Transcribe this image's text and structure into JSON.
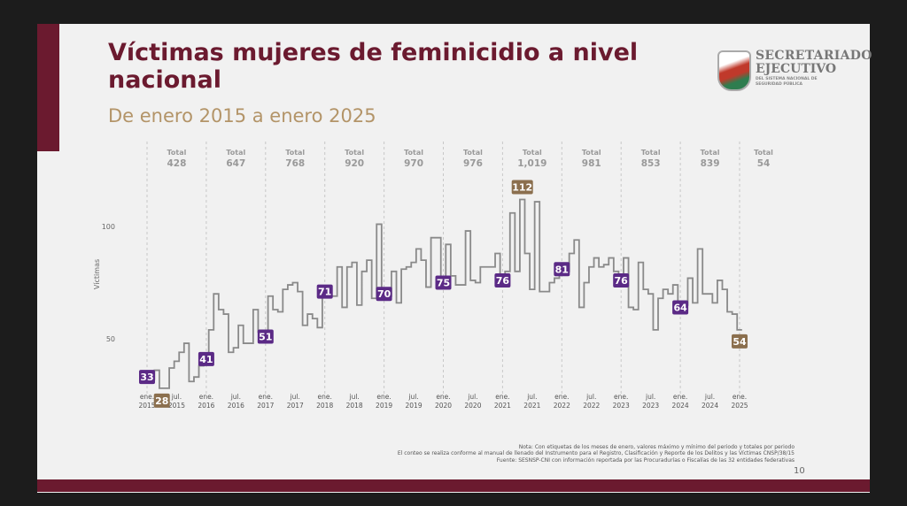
{
  "slide": {
    "title": "Víctimas mujeres de feminicidio a nivel nacional",
    "subtitle": "De enero 2015 a enero 2025",
    "logo": {
      "line1": "SECRETARIADO",
      "line2": "EJECUTIVO",
      "line3": "DEL SISTEMA NACIONAL DE SEGURIDAD PÚBLICA"
    },
    "notes": [
      "Nota: Con etiquetas de los meses de enero, valores máximo y mínimo del periodo y totales por periodo",
      "El conteo se realiza conforme al manual de llenado del Instrumento para el Registro, Clasificación y Reporte de los Delitos y las Víctimas CNSP/38/15",
      "Fuente: SESNSP-CNI con información reportada por las Procuradurías o Fiscalías de las 32 entidades federativas"
    ],
    "page_number": "10",
    "colors": {
      "brand": "#6b1a2f",
      "subtitle": "#b39468",
      "jan_label": "#5b2a86",
      "extreme_label": "#8b6f4e",
      "line": "#8a8a8a"
    }
  },
  "chart_data": {
    "type": "line",
    "style": "step",
    "ylabel": "Víctimas",
    "yticks": [
      50,
      100
    ],
    "ylim": [
      0,
      125
    ],
    "grid": "vertical dashed lines at each January",
    "start": "2015-01",
    "end": "2025-01",
    "xticks": [
      [
        "ene.",
        "2015"
      ],
      [
        "jul.",
        "2015"
      ],
      [
        "ene.",
        "2016"
      ],
      [
        "jul.",
        "2016"
      ],
      [
        "ene.",
        "2017"
      ],
      [
        "jul.",
        "2017"
      ],
      [
        "ene.",
        "2018"
      ],
      [
        "jul.",
        "2018"
      ],
      [
        "ene.",
        "2019"
      ],
      [
        "jul.",
        "2019"
      ],
      [
        "ene.",
        "2020"
      ],
      [
        "jul.",
        "2020"
      ],
      [
        "ene.",
        "2021"
      ],
      [
        "jul.",
        "2021"
      ],
      [
        "ene.",
        "2022"
      ],
      [
        "jul.",
        "2022"
      ],
      [
        "ene.",
        "2023"
      ],
      [
        "jul.",
        "2023"
      ],
      [
        "ene.",
        "2024"
      ],
      [
        "jul.",
        "2024"
      ],
      [
        "ene.",
        "2025"
      ]
    ],
    "values": [
      33,
      32,
      36,
      28,
      28,
      37,
      40,
      44,
      48,
      31,
      33,
      38,
      41,
      54,
      70,
      63,
      61,
      44,
      46,
      56,
      48,
      48,
      63,
      53,
      51,
      69,
      63,
      62,
      72,
      74,
      75,
      71,
      56,
      61,
      59,
      55,
      71,
      69,
      69,
      82,
      64,
      82,
      84,
      65,
      80,
      85,
      68,
      101,
      70,
      69,
      80,
      66,
      81,
      82,
      84,
      90,
      85,
      73,
      95,
      95,
      75,
      92,
      78,
      74,
      74,
      98,
      76,
      75,
      82,
      82,
      82,
      88,
      76,
      80,
      106,
      80,
      112,
      88,
      72,
      111,
      71,
      71,
      75,
      77,
      81,
      80,
      88,
      94,
      64,
      75,
      82,
      86,
      82,
      83,
      86,
      80,
      76,
      86,
      64,
      63,
      84,
      72,
      70,
      54,
      68,
      72,
      70,
      74,
      64,
      65,
      77,
      66,
      90,
      70,
      70,
      66,
      76,
      72,
      62,
      61,
      54
    ],
    "totals_label": "Total",
    "totals": [
      "428",
      "647",
      "768",
      "920",
      "970",
      "976",
      "1,019",
      "981",
      "853",
      "839",
      "54"
    ],
    "annotations": [
      {
        "month": 0,
        "value": "33",
        "kind": "january"
      },
      {
        "month": 3,
        "value": "28",
        "kind": "min"
      },
      {
        "month": 12,
        "value": "41",
        "kind": "january"
      },
      {
        "month": 24,
        "value": "51",
        "kind": "january"
      },
      {
        "month": 36,
        "value": "71",
        "kind": "january"
      },
      {
        "month": 48,
        "value": "70",
        "kind": "january"
      },
      {
        "month": 60,
        "value": "75",
        "kind": "january"
      },
      {
        "month": 72,
        "value": "76",
        "kind": "january"
      },
      {
        "month": 76,
        "value": "112",
        "kind": "max"
      },
      {
        "month": 84,
        "value": "81",
        "kind": "january"
      },
      {
        "month": 96,
        "value": "76",
        "kind": "january"
      },
      {
        "month": 108,
        "value": "64",
        "kind": "january"
      },
      {
        "month": 120,
        "value": "54",
        "kind": "last"
      }
    ]
  }
}
